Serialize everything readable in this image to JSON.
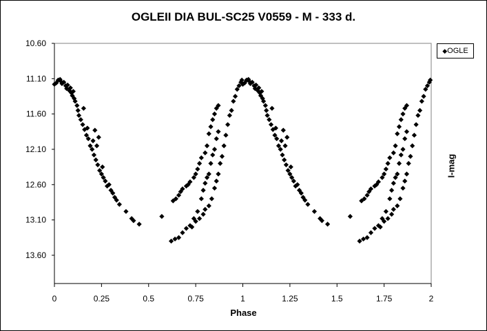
{
  "chart_data": {
    "type": "scatter",
    "title": "OGLEII DIA BUL-SC25 V0559 - M - 333 d.",
    "xlabel": "Phase",
    "ylabel": "I-mag",
    "xlim": [
      0,
      2
    ],
    "ylim": [
      10.6,
      14.0
    ],
    "y_inverted": true,
    "x_ticks": [
      "0",
      "0.25",
      "0.5",
      "0.75",
      "1",
      "1.25",
      "1.5",
      "1.75",
      "2"
    ],
    "x_tick_values": [
      0,
      0.25,
      0.5,
      0.75,
      1,
      1.25,
      1.5,
      1.75,
      2
    ],
    "y_ticks": [
      "10.60",
      "11.10",
      "11.60",
      "12.10",
      "12.60",
      "13.10",
      "13.60"
    ],
    "y_tick_values": [
      10.6,
      11.1,
      11.6,
      12.1,
      12.6,
      13.1,
      13.6
    ],
    "grid": false,
    "legend": {
      "position": "right",
      "entries": [
        "OGLE"
      ]
    },
    "phase_repeat": true,
    "series": [
      {
        "name": "OGLE",
        "color": "#000000",
        "marker": "diamond",
        "points": [
          [
            0.0,
            11.18
          ],
          [
            0.01,
            11.16
          ],
          [
            0.02,
            11.12
          ],
          [
            0.03,
            11.11
          ],
          [
            0.035,
            11.14
          ],
          [
            0.04,
            11.17
          ],
          [
            0.05,
            11.15
          ],
          [
            0.06,
            11.2
          ],
          [
            0.065,
            11.24
          ],
          [
            0.07,
            11.19
          ],
          [
            0.08,
            11.27
          ],
          [
            0.085,
            11.23
          ],
          [
            0.09,
            11.3
          ],
          [
            0.095,
            11.34
          ],
          [
            0.1,
            11.28
          ],
          [
            0.105,
            11.38
          ],
          [
            0.11,
            11.42
          ],
          [
            0.12,
            11.48
          ],
          [
            0.125,
            11.55
          ],
          [
            0.13,
            11.62
          ],
          [
            0.14,
            11.68
          ],
          [
            0.15,
            11.75
          ],
          [
            0.155,
            11.52
          ],
          [
            0.16,
            11.82
          ],
          [
            0.17,
            11.9
          ],
          [
            0.175,
            11.8
          ],
          [
            0.18,
            11.95
          ],
          [
            0.19,
            12.05
          ],
          [
            0.2,
            12.1
          ],
          [
            0.205,
            11.98
          ],
          [
            0.21,
            12.18
          ],
          [
            0.215,
            11.83
          ],
          [
            0.22,
            12.25
          ],
          [
            0.225,
            12.05
          ],
          [
            0.23,
            12.32
          ],
          [
            0.235,
            11.93
          ],
          [
            0.24,
            12.4
          ],
          [
            0.25,
            12.45
          ],
          [
            0.255,
            12.35
          ],
          [
            0.26,
            12.5
          ],
          [
            0.27,
            12.55
          ],
          [
            0.28,
            12.62
          ],
          [
            0.29,
            12.6
          ],
          [
            0.3,
            12.68
          ],
          [
            0.31,
            12.72
          ],
          [
            0.32,
            12.78
          ],
          [
            0.33,
            12.82
          ],
          [
            0.345,
            12.88
          ],
          [
            0.38,
            12.98
          ],
          [
            0.41,
            13.08
          ],
          [
            0.42,
            13.11
          ],
          [
            0.45,
            13.16
          ],
          [
            0.57,
            13.05
          ],
          [
            0.62,
            13.4
          ],
          [
            0.63,
            12.83
          ],
          [
            0.645,
            12.8
          ],
          [
            0.66,
            12.75
          ],
          [
            0.67,
            12.7
          ],
          [
            0.68,
            12.66
          ],
          [
            0.7,
            12.62
          ],
          [
            0.71,
            12.6
          ],
          [
            0.72,
            12.56
          ],
          [
            0.74,
            12.5
          ],
          [
            0.75,
            12.45
          ],
          [
            0.76,
            12.38
          ],
          [
            0.77,
            12.3
          ],
          [
            0.78,
            12.22
          ],
          [
            0.8,
            12.15
          ],
          [
            0.81,
            12.05
          ],
          [
            0.82,
            11.88
          ],
          [
            0.83,
            11.78
          ],
          [
            0.84,
            11.68
          ],
          [
            0.85,
            11.6
          ],
          [
            0.86,
            11.52
          ],
          [
            0.87,
            11.48
          ],
          [
            0.64,
            13.37
          ],
          [
            0.66,
            13.35
          ],
          [
            0.68,
            13.28
          ],
          [
            0.7,
            13.22
          ],
          [
            0.72,
            13.18
          ],
          [
            0.74,
            13.08
          ],
          [
            0.76,
            12.98
          ],
          [
            0.78,
            12.8
          ],
          [
            0.79,
            12.68
          ],
          [
            0.8,
            12.58
          ],
          [
            0.81,
            12.5
          ],
          [
            0.82,
            12.45
          ],
          [
            0.83,
            12.3
          ],
          [
            0.84,
            12.18
          ],
          [
            0.85,
            12.1
          ],
          [
            0.86,
            11.95
          ],
          [
            0.87,
            11.85
          ],
          [
            0.73,
            13.2
          ],
          [
            0.75,
            13.12
          ],
          [
            0.77,
            13.08
          ],
          [
            0.79,
            13.02
          ],
          [
            0.8,
            12.95
          ],
          [
            0.82,
            12.9
          ],
          [
            0.835,
            12.8
          ],
          [
            0.85,
            12.65
          ],
          [
            0.86,
            12.55
          ],
          [
            0.87,
            12.45
          ],
          [
            0.88,
            12.3
          ],
          [
            0.89,
            12.2
          ],
          [
            0.9,
            12.05
          ],
          [
            0.91,
            11.9
          ],
          [
            0.92,
            11.75
          ],
          [
            0.93,
            11.62
          ],
          [
            0.94,
            11.55
          ],
          [
            0.95,
            11.42
          ],
          [
            0.96,
            11.35
          ],
          [
            0.97,
            11.25
          ],
          [
            0.98,
            11.2
          ],
          [
            0.99,
            11.15
          ],
          [
            0.995,
            11.12
          ]
        ]
      }
    ]
  }
}
